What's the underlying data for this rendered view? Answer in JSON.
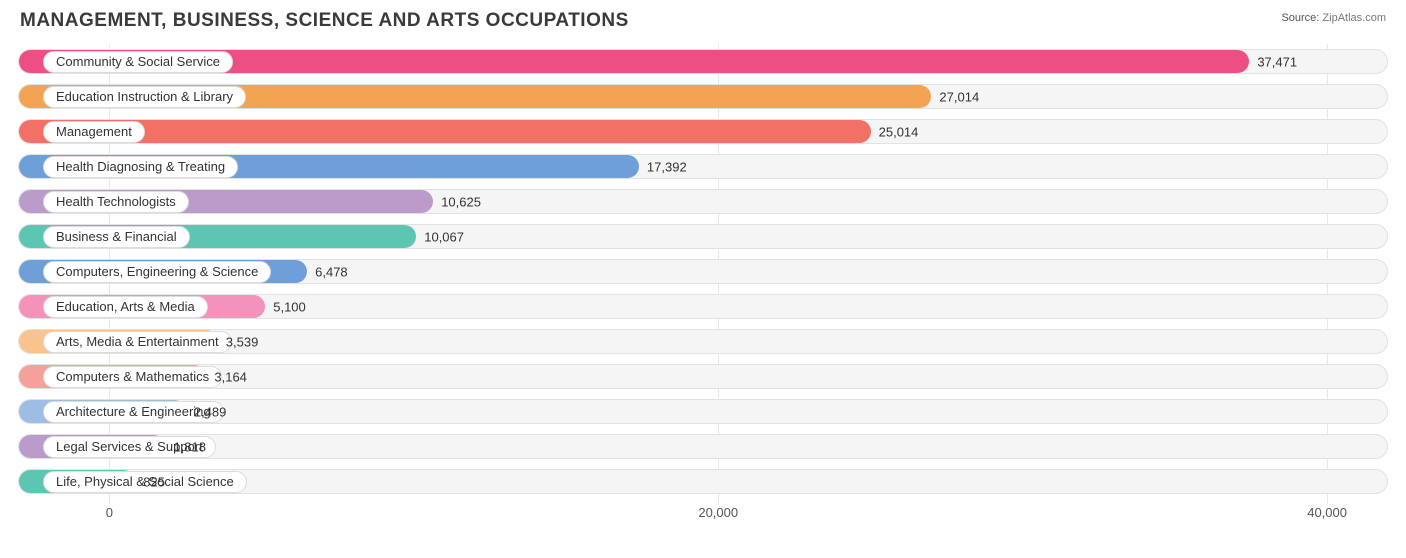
{
  "title": "MANAGEMENT, BUSINESS, SCIENCE AND ARTS OCCUPATIONS",
  "source_label": "Source:",
  "source_value": "ZipAtlas.com",
  "chart": {
    "type": "bar-horizontal",
    "track_bg": "#f5f5f5",
    "track_border": "#e2e2e2",
    "grid_color": "#e8e8e8",
    "text_color": "#333333",
    "x_axis": {
      "min": -3000,
      "max": 42000,
      "ticks": [
        {
          "value": 0,
          "label": "0"
        },
        {
          "value": 20000,
          "label": "20,000"
        },
        {
          "value": 40000,
          "label": "40,000"
        }
      ]
    },
    "bars": [
      {
        "label": "Community & Social Service",
        "value": 37471,
        "display": "37,471",
        "color": "#ed4f84"
      },
      {
        "label": "Education Instruction & Library",
        "value": 27014,
        "display": "27,014",
        "color": "#f3a453"
      },
      {
        "label": "Management",
        "value": 25014,
        "display": "25,014",
        "color": "#f27066"
      },
      {
        "label": "Health Diagnosing & Treating",
        "value": 17392,
        "display": "17,392",
        "color": "#6f9fd8"
      },
      {
        "label": "Health Technologists",
        "value": 10625,
        "display": "10,625",
        "color": "#ba9bc9"
      },
      {
        "label": "Business & Financial",
        "value": 10067,
        "display": "10,067",
        "color": "#5cc6b2"
      },
      {
        "label": "Computers, Engineering & Science",
        "value": 6478,
        "display": "6,478",
        "color": "#6f9fd8"
      },
      {
        "label": "Education, Arts & Media",
        "value": 5100,
        "display": "5,100",
        "color": "#f392bb"
      },
      {
        "label": "Arts, Media & Entertainment",
        "value": 3539,
        "display": "3,539",
        "color": "#fac38e"
      },
      {
        "label": "Computers & Mathematics",
        "value": 3164,
        "display": "3,164",
        "color": "#f5a09a"
      },
      {
        "label": "Architecture & Engineering",
        "value": 2489,
        "display": "2,489",
        "color": "#9dbde3"
      },
      {
        "label": "Legal Services & Support",
        "value": 1818,
        "display": "1,818",
        "color": "#ba9bc9"
      },
      {
        "label": "Life, Physical & Social Science",
        "value": 825,
        "display": "825",
        "color": "#5cc6b2"
      }
    ]
  }
}
